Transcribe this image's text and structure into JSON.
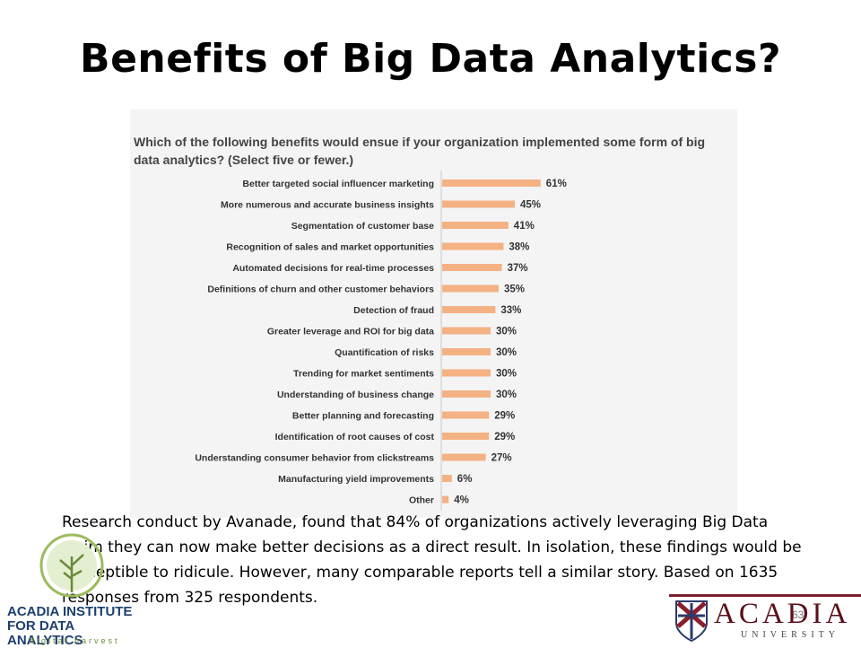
{
  "slide": {
    "title": "Benefits of Big Data Analytics?",
    "body_text": "Research conduct by Avanade, found that 84% of organizations actively leveraging Big Data claim they can now make better decisions as a direct result. In isolation, these findings would be susceptible to ridicule. However, many comparable reports tell a similar story. Based on 1635 responses from 325 respondents.",
    "page_number": "63"
  },
  "logos": {
    "institute_name_line1": "ACADIA INSTITUTE",
    "institute_name_line2": "FOR DATA ANALYTICS",
    "institute_tagline": "digital harvest",
    "university_name": "ACADIA",
    "university_sub": "UNIVERSITY"
  },
  "colors": {
    "bar": "#f4b183",
    "panel_bg": "#f4f4f4",
    "label_text": "#333333",
    "accent_maroon": "#7a1f2b"
  },
  "chart_data": {
    "type": "bar",
    "orientation": "horizontal",
    "title": "Which of the following benefits would ensue if your organization implemented some form of big data analytics? (Select five or fewer.)",
    "unit": "%",
    "categories": [
      "Better targeted social influencer marketing",
      "More numerous and accurate business insights",
      "Segmentation of customer base",
      "Recognition of sales and market opportunities",
      "Automated decisions for real-time processes",
      "Definitions of churn and other customer behaviors",
      "Detection of fraud",
      "Greater leverage and ROI for big data",
      "Quantification of risks",
      "Trending for market sentiments",
      "Understanding of business change",
      "Better planning and forecasting",
      "Identification of root causes of cost",
      "Understanding consumer behavior from clickstreams",
      "Manufacturing yield improvements",
      "Other"
    ],
    "values": [
      61,
      45,
      41,
      38,
      37,
      35,
      33,
      30,
      30,
      30,
      30,
      29,
      29,
      27,
      6,
      4
    ],
    "value_labels": [
      "61%",
      "45%",
      "41%",
      "38%",
      "37%",
      "35%",
      "33%",
      "30%",
      "30%",
      "30%",
      "30%",
      "29%",
      "29%",
      "27%",
      "6%",
      "4%"
    ],
    "grid": false,
    "legend": "none"
  }
}
